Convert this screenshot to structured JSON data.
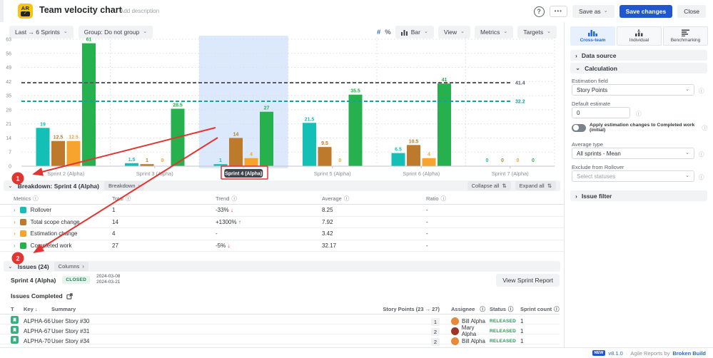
{
  "header": {
    "logo": "AR",
    "logo_check": "✓",
    "title": "Team velocity chart",
    "add_description": "Add description",
    "help": "?",
    "more": "•••",
    "save_as": "Save as",
    "save_changes": "Save changes",
    "close": "Close"
  },
  "filters": {
    "range": "Last → 6 Sprints",
    "group": "Group: Do not group"
  },
  "chart_toolbar": {
    "hash": "#",
    "percent": "%",
    "type": "Bar",
    "view": "View",
    "metrics": "Metrics",
    "targets": "Targets"
  },
  "chart_data": {
    "type": "bar",
    "title": "Team velocity chart",
    "categories": [
      "Sprint 2 (Alpha)",
      "Sprint 3 (Alpha)",
      "Sprint 4 (Alpha)",
      "Sprint 5 (Alpha)",
      "Sprint 6 (Alpha)",
      "Sprint 7 (Alpha)"
    ],
    "series": [
      {
        "name": "Rollover",
        "color": "#14bfb5",
        "values": [
          19,
          1.5,
          1,
          21.5,
          6.5,
          0
        ]
      },
      {
        "name": "Total scope change",
        "color": "#bd7a2c",
        "values": [
          12.5,
          1,
          14,
          9.5,
          10.5,
          0
        ]
      },
      {
        "name": "Estimation change",
        "color": "#f6a42d",
        "values": [
          12.5,
          0,
          4,
          0,
          4,
          0
        ]
      },
      {
        "name": "Completed work",
        "color": "#26b14e",
        "values": [
          61,
          28.5,
          27,
          35.5,
          41,
          0
        ]
      }
    ],
    "yticks": [
      0,
      7,
      14,
      21,
      28,
      35,
      42,
      49,
      56,
      63
    ],
    "ylim": [
      0,
      63
    ],
    "grid": true,
    "legend_position": "none",
    "target_lines": [
      {
        "value": 41.4,
        "label": "41.4",
        "color": "#565b63"
      },
      {
        "value": 32.2,
        "label": "32.2",
        "color": "#12a398"
      }
    ],
    "highlighted_category": "Sprint 4 (Alpha)"
  },
  "annotations": {
    "step1": "1",
    "step2": "2"
  },
  "breakdown": {
    "title": "Breakdown: Sprint 4 (Alpha)",
    "chip": "Breakdown",
    "collapse_all": "Collapse all",
    "expand_all": "Expand all",
    "columns": {
      "metrics": "Metrics",
      "total": "Total",
      "trend": "Trend",
      "average": "Average",
      "ratio": "Ratio"
    },
    "rows": [
      {
        "metric": "Rollover",
        "color": "#14bfb5",
        "total": "1",
        "trend": "-33%",
        "trend_arrow": "↓",
        "average": "8.25",
        "ratio": "-"
      },
      {
        "metric": "Total scope change",
        "color": "#bd7a2c",
        "total": "14",
        "trend": "+1300%",
        "trend_arrow": "↑",
        "average": "7.92",
        "ratio": "-"
      },
      {
        "metric": "Estimation change",
        "color": "#f6a42d",
        "total": "4",
        "trend": "-",
        "trend_arrow": "",
        "average": "3.42",
        "ratio": "-"
      },
      {
        "metric": "Completed work",
        "color": "#26b14e",
        "total": "27",
        "trend": "-5%",
        "trend_arrow": "↓",
        "average": "32.17",
        "ratio": "-"
      }
    ]
  },
  "issues": {
    "title": "Issues (24)",
    "columns_chip": "Columns",
    "sprint_name": "Sprint 4 (Alpha)",
    "sprint_status": "CLOSED",
    "date_start": "2024-03-08",
    "date_end": "2024-03-21",
    "view_report": "View Sprint Report",
    "subsection": "Issues Completed",
    "table_columns": {
      "type": "T",
      "key": "Key",
      "summary": "Summary",
      "points": "Story Points (23 → 27)",
      "assignee": "Assignee",
      "status": "Status",
      "sprint_count": "Sprint count"
    },
    "rows": [
      {
        "key": "ALPHA-66",
        "summary": "User Story #30",
        "points": "1",
        "assignee": "Bill Alpha",
        "avatar_color": "#e8883a",
        "status": "RELEASED",
        "sprint_count": "1"
      },
      {
        "key": "ALPHA-67",
        "summary": "User Story #31",
        "points": "2",
        "assignee": "Mary Alpha",
        "avatar_color": "#9c3528",
        "status": "RELEASED",
        "sprint_count": "1"
      },
      {
        "key": "ALPHA-70",
        "summary": "User Story #34",
        "points": "2",
        "assignee": "Bill Alpha",
        "avatar_color": "#e8883a",
        "status": "RELEASED",
        "sprint_count": "1"
      }
    ]
  },
  "panel": {
    "tabs": [
      {
        "label": "Cross-team"
      },
      {
        "label": "Individual"
      },
      {
        "label": "Benchmarking"
      }
    ],
    "sections": {
      "data_source": "Data source",
      "calculation": "Calculation",
      "issue_filter": "Issue filter"
    },
    "calculation": {
      "estimation_field_label": "Estimation field",
      "estimation_field_value": "Story Points",
      "default_estimate_label": "Default estimate",
      "default_estimate_value": "0",
      "toggle_label": "Apply estimation changes to Completed work (initial)",
      "average_type_label": "Average type",
      "average_type_value": "All sprints - Mean",
      "exclude_label": "Exclude from Rollover",
      "exclude_placeholder": "Select statuses"
    }
  },
  "footer": {
    "badge": "NEW",
    "version": "v8.1.0",
    "sep": "·",
    "text": "Agile Reports by",
    "brand": "Broken Build"
  },
  "colors": {
    "primary_blue": "#2057cf",
    "link_blue": "#2668d9",
    "highlight_band": "#dce8fb",
    "annotation_red": "#e23430",
    "status_green": "#1f9d55",
    "trend_red": "#d9363e"
  }
}
